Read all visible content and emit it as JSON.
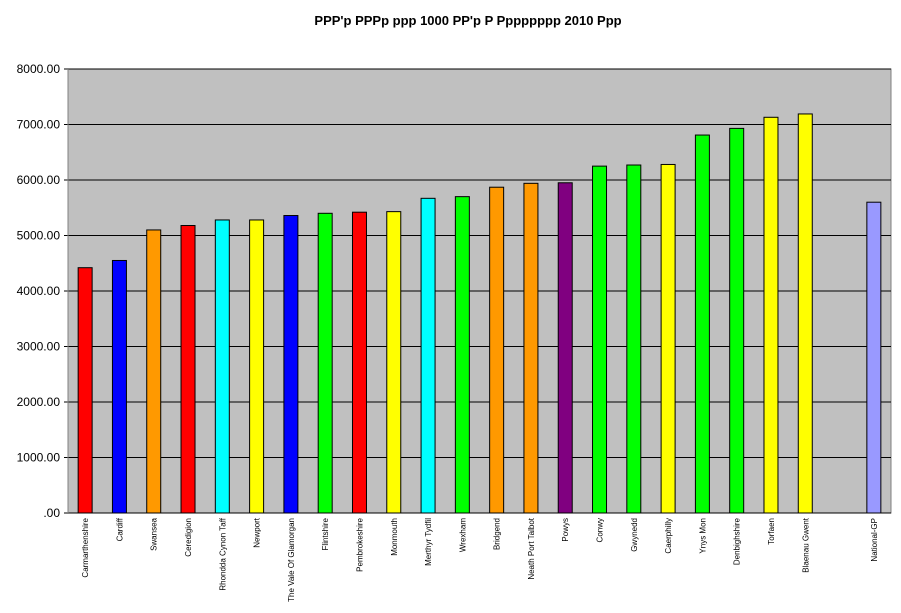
{
  "chart_data": {
    "type": "bar",
    "title": "PPP'p PPPp ppp 1000 PP'p P Pppppppp 2010 Ppp",
    "xlabel": "",
    "ylabel": "",
    "ylim": [
      0,
      8000
    ],
    "ytick_labels": [
      ".00",
      "1000.00",
      "2000.00",
      "3000.00",
      "4000.00",
      "5000.00",
      "6000.00",
      "7000.00",
      "8000.00"
    ],
    "grid": true,
    "legend": "none",
    "plot_background": "#c0c0c0",
    "categories": [
      "Carmarthenshire",
      "Cardiff",
      "Swansea",
      "Ceredigion",
      "Rhondda Cynon Taff",
      "Newport",
      "The Vale Of Glamorgan",
      "Flintshire",
      "Pembrokeshire",
      "Monmouth",
      "Merthyr Tydfil",
      "Wrexham",
      "Bridgend",
      "Neath Port Talbot",
      "Powys",
      "Conwy",
      "Gwynedd",
      "Caerphilly",
      "Ynys Mon",
      "Denbighshire",
      "Torfaen",
      "Blaenau Gwent",
      "",
      "National-GP"
    ],
    "values": [
      4420,
      4550,
      5100,
      5180,
      5280,
      5280,
      5360,
      5400,
      5420,
      5430,
      5670,
      5700,
      5870,
      5940,
      5950,
      6250,
      6270,
      6280,
      6810,
      6930,
      7130,
      7190,
      null,
      5600
    ],
    "colors": [
      "#ff0000",
      "#0000ff",
      "#ff9900",
      "#ff0000",
      "#00ffff",
      "#ffff00",
      "#0000ff",
      "#00ff00",
      "#ff0000",
      "#ffff00",
      "#00ffff",
      "#00ff00",
      "#ff9900",
      "#ff9900",
      "#800080",
      "#00ff00",
      "#00ff00",
      "#ffff00",
      "#00ff00",
      "#00ff00",
      "#ffff00",
      "#ffff00",
      "",
      "#9999ff"
    ]
  }
}
